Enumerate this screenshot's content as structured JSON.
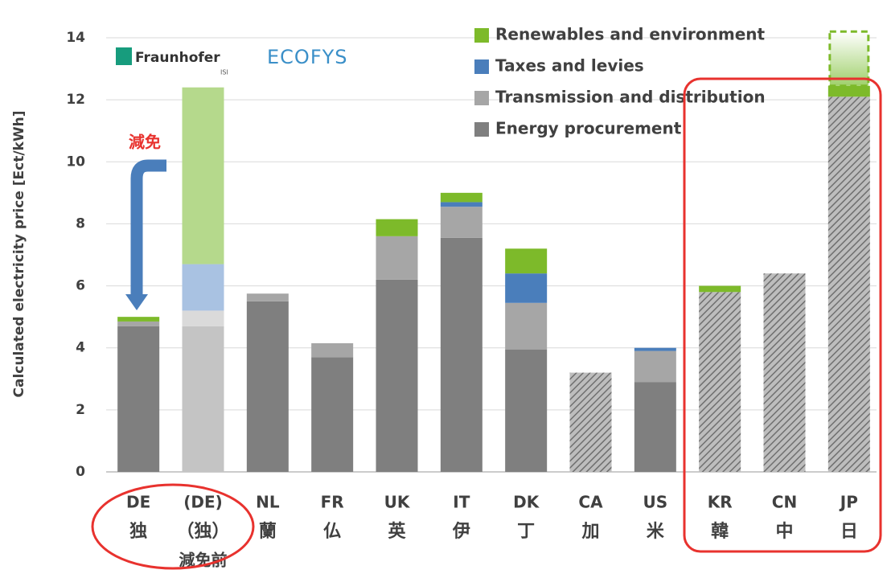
{
  "chart_data": {
    "type": "bar",
    "stacked": true,
    "y_label": "Calculated electricity price [Ect/kWh]",
    "categories": [
      "DE",
      "(DE)",
      "NL",
      "FR",
      "UK",
      "IT",
      "DK",
      "CA",
      "US",
      "KR",
      "CN",
      "JP"
    ],
    "categories_ja": [
      "独",
      "（独）",
      "蘭",
      "仏",
      "英",
      "伊",
      "丁",
      "加",
      "米",
      "韓",
      "中",
      "日"
    ],
    "category_notes": [
      null,
      "減免前",
      null,
      null,
      null,
      null,
      null,
      null,
      null,
      null,
      null,
      null
    ],
    "bar_styles": [
      "solid",
      "faded",
      "solid",
      "solid",
      "solid",
      "solid",
      "solid",
      "hatched",
      "solid",
      "hatched",
      "hatched",
      "hatched"
    ],
    "series": [
      {
        "name": "Energy procurement",
        "color": "#7f7f7f",
        "faded_color": "#c4c4c4",
        "values": [
          4.7,
          4.7,
          5.5,
          3.7,
          6.2,
          7.55,
          3.95,
          3.2,
          2.9,
          5.8,
          6.4,
          12.1
        ]
      },
      {
        "name": "Transmission and distribution",
        "color": "#a6a6a6",
        "faded_color": "#dadada",
        "values": [
          0.15,
          0.5,
          0.25,
          0.45,
          1.4,
          1.0,
          1.5,
          0,
          1.0,
          0,
          0,
          0
        ]
      },
      {
        "name": "Taxes and levies",
        "color": "#4a7ebb",
        "faded_color": "#a9c2e2",
        "values": [
          0,
          1.5,
          0,
          0,
          0,
          0.15,
          0.95,
          0,
          0.1,
          0,
          0,
          0
        ]
      },
      {
        "name": "Renewables and environment",
        "color": "#7dba2a",
        "faded_color": "#b5d98c",
        "values": [
          0.15,
          5.7,
          0,
          0,
          0.55,
          0.3,
          0.8,
          0,
          0,
          0.2,
          0,
          0.35
        ]
      }
    ],
    "dashed_segment": {
      "category": "JP",
      "value": 1.75,
      "color": "#7dba2a"
    },
    "ylim": [
      0,
      14
    ],
    "yticks": [
      0,
      2,
      4,
      6,
      8,
      10,
      12,
      14
    ],
    "grid": true,
    "annotations": [
      {
        "text": "減免"
      }
    ],
    "logos": [
      "Fraunhofer",
      "ISI",
      "ECOFYS"
    ]
  }
}
